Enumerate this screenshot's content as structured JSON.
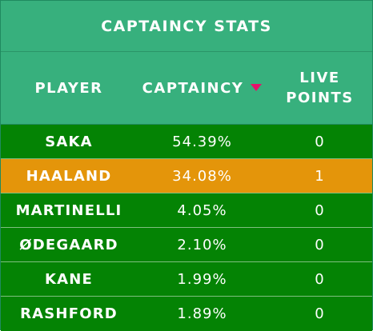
{
  "title": "CAPTAINCY STATS",
  "headers": {
    "player": "PLAYER",
    "captaincy": "CAPTAINCY",
    "live_line1": "LIVE",
    "live_line2": "POINTS"
  },
  "sort": {
    "column": "captaincy",
    "direction": "descending",
    "arrow_color": "#e8106a"
  },
  "colors": {
    "header_bg": "#37b07d",
    "row_bg": "#048304",
    "highlight_bg": "#e4950a",
    "text": "#ffffff"
  },
  "rows": [
    {
      "player": "SAKA",
      "captaincy": "54.39%",
      "live_points": "0",
      "highlighted": false
    },
    {
      "player": "HAALAND",
      "captaincy": "34.08%",
      "live_points": "1",
      "highlighted": true
    },
    {
      "player": "MARTINELLI",
      "captaincy": "4.05%",
      "live_points": "0",
      "highlighted": false
    },
    {
      "player": "ØDEGAARD",
      "captaincy": "2.10%",
      "live_points": "0",
      "highlighted": false
    },
    {
      "player": "KANE",
      "captaincy": "1.99%",
      "live_points": "0",
      "highlighted": false
    },
    {
      "player": "RASHFORD",
      "captaincy": "1.89%",
      "live_points": "0",
      "highlighted": false
    }
  ]
}
